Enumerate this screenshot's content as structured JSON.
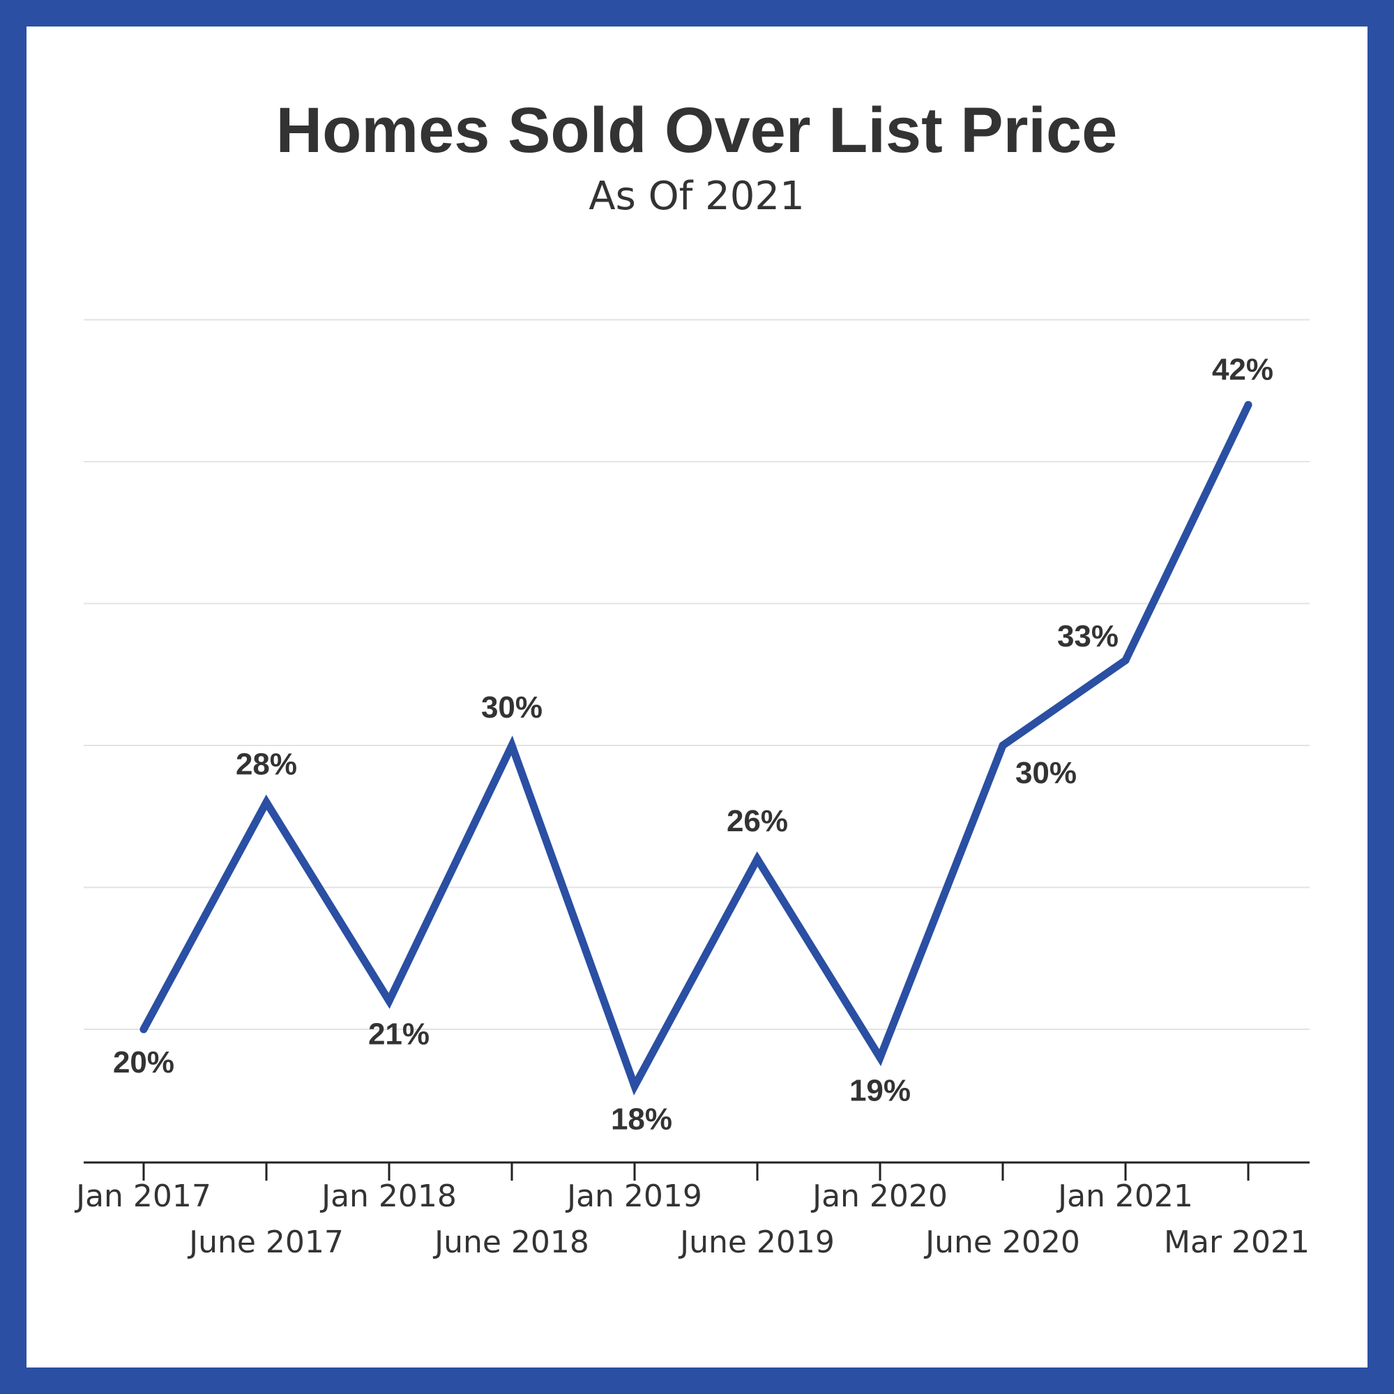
{
  "chart_data": {
    "type": "line",
    "title": "Homes Sold Over List Price",
    "subtitle": "As Of 2021",
    "xlabel": "",
    "ylabel": "",
    "categories": [
      "Jan 2017",
      "June 2017",
      "Jan 2018",
      "June 2018",
      "Jan 2019",
      "June 2019",
      "Jan 2020",
      "June 2020",
      "Jan 2021",
      "Mar 2021"
    ],
    "series": [
      {
        "values": [
          20,
          28,
          21,
          30,
          18,
          26,
          19,
          30,
          33,
          42
        ]
      }
    ],
    "data_labels": [
      "20%",
      "28%",
      "21%",
      "30%",
      "18%",
      "26%",
      "19%",
      "30%",
      "33%",
      "42%"
    ],
    "ylim": [
      15,
      45
    ],
    "grid": true,
    "legend": "none"
  },
  "colors": {
    "border": "#2a4fa3",
    "line": "#2a4fa3",
    "text": "#333333",
    "grid": "#e3e3e3",
    "axis": "#222222"
  }
}
